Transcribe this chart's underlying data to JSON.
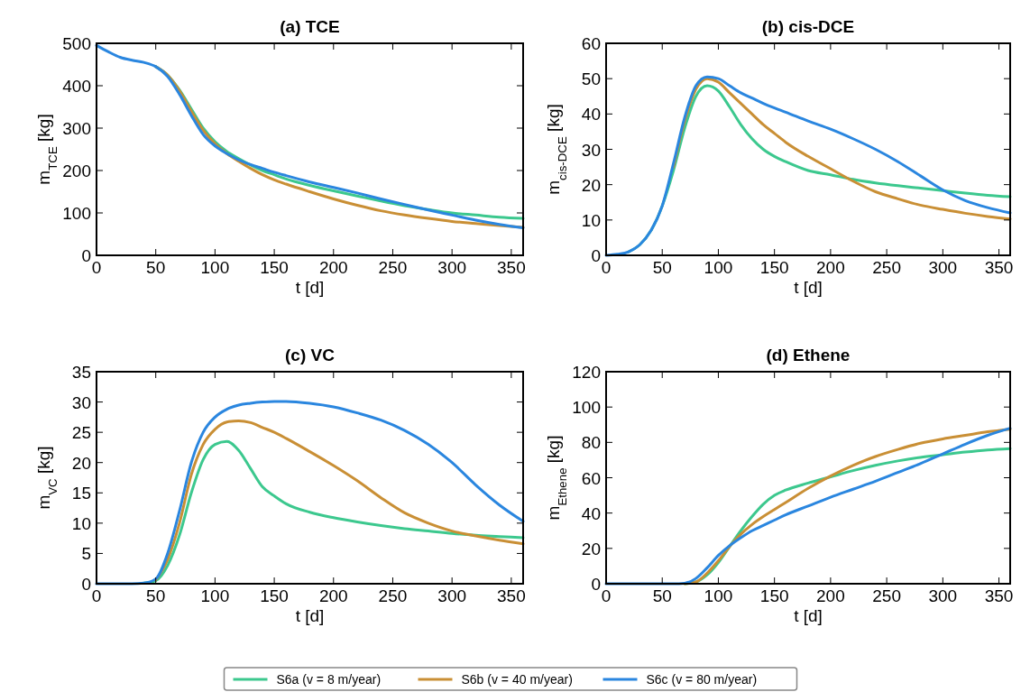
{
  "chart_data": [
    {
      "type": "line",
      "title": "(a) TCE",
      "xlabel": "t [d]",
      "ylabel": "m$_{TCE}$ [kg]",
      "xlim": [
        0,
        360
      ],
      "xticks": [
        0,
        50,
        100,
        150,
        200,
        250,
        300,
        350
      ],
      "ylim": [
        0,
        500
      ],
      "yticks": [
        0,
        100,
        200,
        300,
        400,
        500
      ],
      "legend": "bottom",
      "x": [
        0,
        10,
        20,
        30,
        40,
        50,
        60,
        70,
        80,
        90,
        100,
        110,
        120,
        130,
        140,
        150,
        160,
        180,
        200,
        220,
        240,
        260,
        280,
        300,
        320,
        340,
        360
      ],
      "series": [
        {
          "name": "S6a (v = 8 m/year)",
          "color": "#3cc88e",
          "values": [
            null,
            null,
            null,
            null,
            null,
            445,
            425,
            390,
            345,
            300,
            268,
            245,
            228,
            213,
            200,
            190,
            180,
            165,
            152,
            140,
            128,
            117,
            108,
            100,
            95,
            90,
            87
          ]
        },
        {
          "name": "S6b (v = 40 m/year)",
          "color": "#c98f35",
          "values": [
            null,
            null,
            null,
            null,
            null,
            445,
            425,
            388,
            340,
            295,
            263,
            240,
            222,
            205,
            190,
            178,
            168,
            150,
            133,
            118,
            105,
            95,
            87,
            80,
            75,
            70,
            66
          ]
        },
        {
          "name": "S6c (v = 80 m/year)",
          "color": "#2a86df",
          "values": [
            495,
            480,
            467,
            460,
            455,
            445,
            422,
            380,
            330,
            285,
            258,
            240,
            225,
            214,
            205,
            196,
            188,
            173,
            160,
            147,
            133,
            120,
            107,
            95,
            83,
            73,
            65
          ]
        }
      ]
    },
    {
      "type": "line",
      "title": "(b) cis-DCE",
      "xlabel": "t [d]",
      "ylabel": "m$_{cis-DCE}$ [kg]",
      "xlim": [
        0,
        360
      ],
      "xticks": [
        0,
        50,
        100,
        150,
        200,
        250,
        300,
        350
      ],
      "ylim": [
        0,
        60
      ],
      "yticks": [
        0,
        10,
        20,
        30,
        40,
        50,
        60
      ],
      "x": [
        0,
        10,
        20,
        30,
        40,
        50,
        60,
        70,
        80,
        90,
        100,
        110,
        120,
        130,
        140,
        150,
        160,
        180,
        200,
        220,
        240,
        260,
        280,
        300,
        320,
        340,
        360
      ],
      "series": [
        {
          "color": "#3cc88e",
          "values": [
            null,
            null,
            1,
            3,
            7,
            14,
            24,
            36,
            45,
            48,
            46.5,
            42,
            37,
            33,
            30,
            28,
            26.5,
            24,
            22.8,
            21.5,
            20.5,
            19.7,
            19,
            18.3,
            17.6,
            17,
            16.6
          ]
        },
        {
          "color": "#c98f35",
          "values": [
            null,
            null,
            null,
            null,
            null,
            null,
            25,
            38,
            47,
            50,
            49,
            46,
            43,
            40,
            37,
            34.5,
            32,
            28,
            24.5,
            21,
            18,
            16,
            14.2,
            13,
            11.9,
            11,
            10.3
          ]
        },
        {
          "color": "#2a86df",
          "values": [
            0,
            0.3,
            1,
            3,
            7,
            14,
            26,
            39,
            48,
            50.5,
            50,
            48,
            46,
            44.5,
            43,
            41.7,
            40.5,
            38,
            35.7,
            33,
            30,
            26.5,
            22.5,
            18.5,
            15.5,
            13.5,
            12
          ]
        }
      ]
    },
    {
      "type": "line",
      "title": "(c) VC",
      "xlabel": "t [d]",
      "ylabel": "m$_{VC}$ [kg]",
      "xlim": [
        0,
        360
      ],
      "xticks": [
        0,
        50,
        100,
        150,
        200,
        250,
        300,
        350
      ],
      "ylim": [
        0,
        35
      ],
      "yticks": [
        0,
        5,
        10,
        15,
        20,
        25,
        30,
        35
      ],
      "x": [
        0,
        10,
        20,
        30,
        40,
        50,
        60,
        70,
        80,
        90,
        100,
        110,
        120,
        130,
        140,
        150,
        160,
        180,
        200,
        220,
        240,
        260,
        280,
        300,
        320,
        340,
        360
      ],
      "series": [
        {
          "color": "#3cc88e",
          "values": [
            null,
            null,
            null,
            null,
            0.1,
            0.5,
            3,
            8,
            15,
            20.5,
            23,
            23.5,
            22,
            19,
            16,
            14.5,
            13.2,
            11.8,
            10.9,
            10.2,
            9.6,
            9.1,
            8.7,
            8.3,
            8,
            7.8,
            7.6
          ]
        },
        {
          "color": "#c98f35",
          "values": [
            null,
            null,
            null,
            null,
            null,
            0.6,
            4,
            10,
            18,
            23,
            25.5,
            26.7,
            26.9,
            26.6,
            25.8,
            25,
            24,
            21.8,
            19.5,
            17,
            14.2,
            11.7,
            10,
            8.7,
            7.9,
            7.2,
            6.6
          ]
        },
        {
          "color": "#2a86df",
          "values": [
            0,
            0,
            0,
            0,
            0.1,
            0.8,
            5,
            12,
            20,
            25,
            27.5,
            28.8,
            29.5,
            29.8,
            30,
            30.1,
            30.1,
            29.8,
            29.2,
            28.2,
            27,
            25.3,
            23,
            20,
            16.3,
            13,
            10.3
          ]
        }
      ]
    },
    {
      "type": "line",
      "title": "(d) Ethene",
      "xlabel": "t [d]",
      "ylabel": "m$_{Ethene}$ [kg]",
      "xlim": [
        0,
        360
      ],
      "xticks": [
        0,
        50,
        100,
        150,
        200,
        250,
        300,
        350
      ],
      "ylim": [
        0,
        120
      ],
      "yticks": [
        0,
        20,
        40,
        60,
        80,
        100,
        120
      ],
      "x": [
        0,
        10,
        20,
        30,
        40,
        50,
        60,
        70,
        80,
        90,
        100,
        110,
        120,
        130,
        140,
        150,
        160,
        180,
        200,
        220,
        240,
        260,
        280,
        300,
        320,
        340,
        360
      ],
      "series": [
        {
          "color": "#3cc88e",
          "values": [
            null,
            null,
            null,
            null,
            null,
            null,
            null,
            0,
            1,
            5,
            12,
            21,
            30,
            38,
            45,
            50,
            53,
            57,
            60.5,
            64,
            67,
            69.5,
            71.5,
            73,
            74.5,
            75.7,
            76.5
          ]
        },
        {
          "color": "#c98f35",
          "values": [
            null,
            null,
            null,
            null,
            null,
            null,
            null,
            0,
            1,
            6,
            13,
            21,
            28,
            33.5,
            38,
            42,
            46,
            54,
            61,
            67,
            72,
            76,
            79.5,
            82,
            84,
            86,
            87.5
          ]
        },
        {
          "color": "#2a86df",
          "values": [
            0,
            0,
            0,
            0,
            0,
            0,
            0,
            0.3,
            3,
            9,
            16,
            21.5,
            26,
            30,
            33,
            36,
            39,
            44,
            49,
            53.5,
            58,
            63,
            68,
            73.5,
            79,
            84,
            88
          ]
        }
      ]
    }
  ]
}
